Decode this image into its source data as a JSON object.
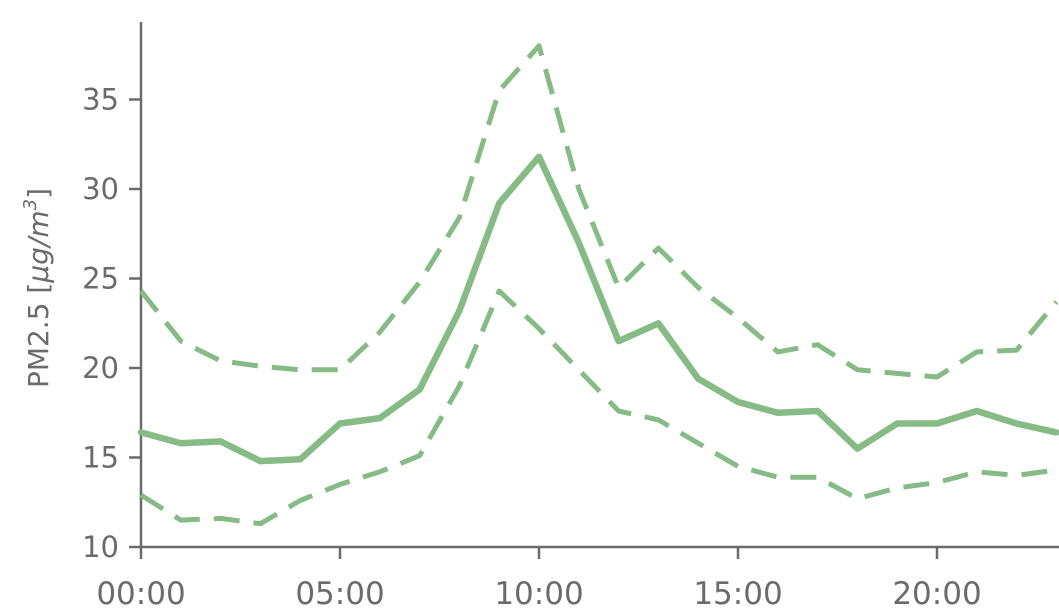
{
  "chart_data": {
    "type": "line",
    "title": "",
    "xlabel": "",
    "ylabel": "PM2.5 [μg/m³]",
    "ylabel_parts": {
      "base": "PM2.5 [",
      "unit_mu": "μ",
      "unit_g": "g/m",
      "unit_exp": "3",
      "close": "]"
    },
    "xlim": [
      0,
      23
    ],
    "ylim": [
      10,
      38
    ],
    "x": [
      0,
      1,
      2,
      3,
      4,
      5,
      6,
      7,
      8,
      9,
      10,
      11,
      12,
      13,
      14,
      15,
      16,
      17,
      18,
      19,
      20,
      21,
      22,
      23
    ],
    "x_ticks": [
      0,
      5,
      10,
      15,
      20
    ],
    "x_tick_labels": [
      "00:00",
      "05:00",
      "10:00",
      "15:00",
      "20:00"
    ],
    "y_ticks": [
      10,
      15,
      20,
      25,
      30,
      35
    ],
    "y_tick_labels": [
      "10",
      "15",
      "20",
      "25",
      "30",
      "35"
    ],
    "grid": false,
    "legend": "none",
    "color": "#86bb86",
    "series": [
      {
        "style": "solid",
        "values": [
          16.4,
          15.8,
          15.9,
          14.8,
          14.9,
          16.9,
          17.2,
          18.8,
          23.2,
          29.2,
          31.8,
          27.0,
          21.5,
          22.5,
          19.4,
          18.1,
          17.5,
          17.6,
          15.5,
          16.9,
          16.9,
          17.6,
          16.9,
          16.4
        ]
      },
      {
        "style": "dashed",
        "values": [
          24.3,
          21.5,
          20.4,
          20.1,
          19.9,
          19.9,
          22.0,
          24.8,
          28.4,
          35.5,
          38.0,
          30.0,
          24.5,
          26.7,
          24.5,
          22.8,
          20.9,
          21.3,
          19.9,
          19.7,
          19.5,
          20.9,
          21.0,
          23.7
        ]
      },
      {
        "style": "dashed",
        "values": [
          12.9,
          11.5,
          11.6,
          11.3,
          12.6,
          13.5,
          14.2,
          15.1,
          19.0,
          24.3,
          22.2,
          19.9,
          17.6,
          17.1,
          15.8,
          14.5,
          13.9,
          13.9,
          12.7,
          13.3,
          13.6,
          14.2,
          14.0,
          14.3
        ]
      }
    ]
  }
}
